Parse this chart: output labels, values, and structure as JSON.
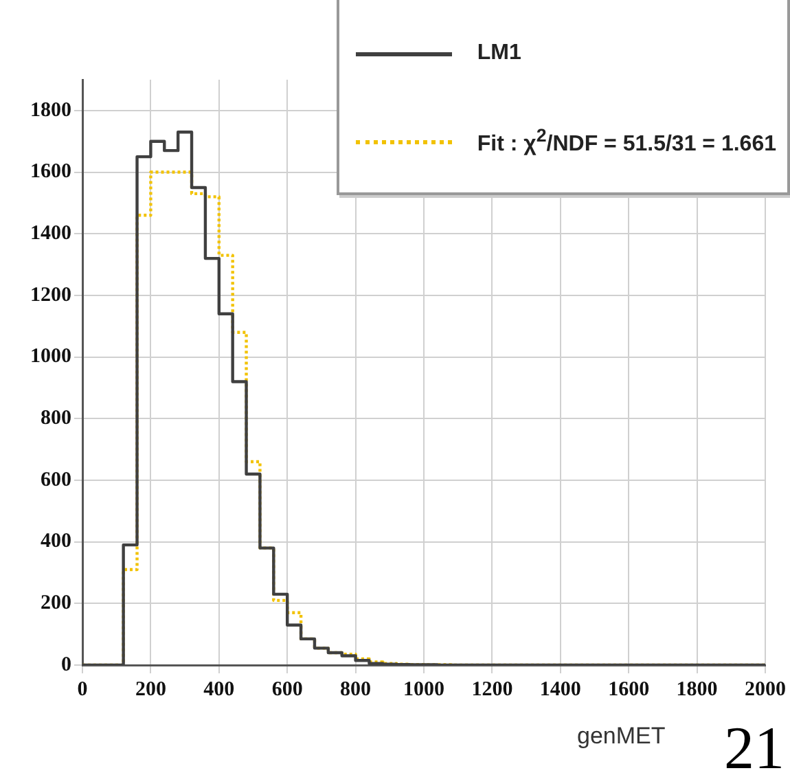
{
  "chart_data": {
    "type": "histogram",
    "xlabel": "genMET",
    "annotations": [
      "21"
    ],
    "bins": [
      0,
      40,
      80,
      120,
      160,
      200,
      240,
      280,
      320,
      360,
      400,
      440,
      480,
      520,
      560,
      600,
      640,
      680,
      720,
      760,
      800,
      840,
      880,
      920,
      960,
      1000,
      1040,
      1080,
      1120,
      1160,
      1200,
      1240,
      1280,
      1320,
      1360,
      1400,
      1440,
      1480,
      1520,
      1560,
      1600,
      1640,
      1680,
      1720,
      1760,
      1800,
      1840,
      1880,
      1920,
      1960,
      2000
    ],
    "series": [
      {
        "name": "LM1",
        "color": "#404040",
        "line_style": "solid",
        "values": [
          0,
          0,
          0,
          390,
          1650,
          1700,
          1670,
          1730,
          1550,
          1320,
          1140,
          920,
          620,
          380,
          230,
          130,
          85,
          55,
          40,
          30,
          15,
          5,
          3,
          2,
          1,
          1,
          0,
          0,
          0,
          0,
          0,
          0,
          0,
          0,
          0,
          0,
          0,
          0,
          0,
          0,
          0,
          0,
          0,
          0,
          0,
          0,
          0,
          0,
          0,
          0
        ]
      },
      {
        "name": "Fit : χ$^{2}$/NDF = 51.5/31 = 1.661",
        "color": "#f2c200",
        "line_style": "dotted",
        "values": [
          0,
          0,
          0,
          310,
          1460,
          1600,
          1600,
          1600,
          1530,
          1520,
          1330,
          1080,
          660,
          380,
          210,
          170,
          85,
          55,
          40,
          35,
          20,
          10,
          5,
          3,
          2,
          1,
          1,
          0,
          0,
          0,
          0,
          0,
          0,
          0,
          0,
          0,
          0,
          0,
          0,
          0,
          0,
          0,
          0,
          0,
          0,
          0,
          0,
          0,
          0,
          0
        ]
      }
    ],
    "xlim": [
      0,
      2000
    ],
    "xticks": [
      0,
      200,
      400,
      600,
      800,
      1000,
      1200,
      1400,
      1600,
      1800,
      2000
    ],
    "ylim": [
      0,
      1900
    ],
    "yticks": [
      0,
      200,
      400,
      600,
      800,
      1000,
      1200,
      1400,
      1600,
      1800
    ],
    "grid": true,
    "legend": "top right"
  }
}
